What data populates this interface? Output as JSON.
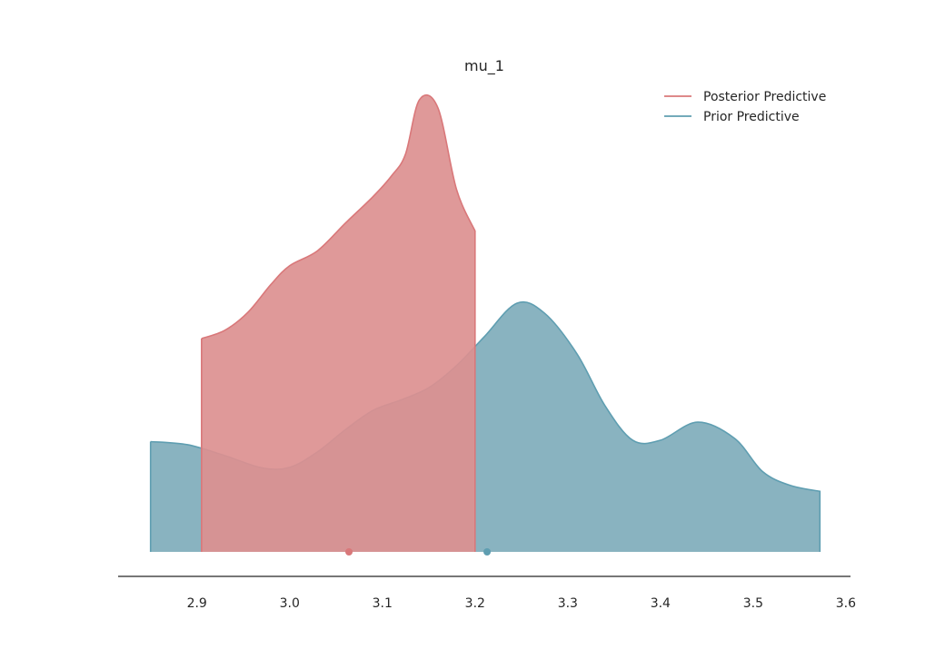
{
  "chart_data": {
    "type": "area",
    "title": "mu_1",
    "xlabel": "",
    "ylabel": "",
    "xlim": [
      2.815,
      3.605
    ],
    "x_ticks": [
      2.9,
      3.0,
      3.1,
      3.2,
      3.3,
      3.4,
      3.5,
      3.6
    ],
    "x_tick_labels": [
      "2.9",
      "3.0",
      "3.1",
      "3.2",
      "3.3",
      "3.4",
      "3.5",
      "3.6"
    ],
    "y_axis_visible": false,
    "grid": false,
    "legend_position": "top-right",
    "series": [
      {
        "name": "Prior Predictive",
        "color": "#5f9eb1",
        "fill_color": "#7fadbb",
        "mean": 3.213,
        "points": [
          [
            2.85,
            0.244
          ],
          [
            2.89,
            0.237
          ],
          [
            2.93,
            0.213
          ],
          [
            2.97,
            0.186
          ],
          [
            3.0,
            0.187
          ],
          [
            3.03,
            0.221
          ],
          [
            3.06,
            0.27
          ],
          [
            3.09,
            0.313
          ],
          [
            3.12,
            0.336
          ],
          [
            3.15,
            0.363
          ],
          [
            3.18,
            0.412
          ],
          [
            3.21,
            0.476
          ],
          [
            3.245,
            0.55
          ],
          [
            3.275,
            0.528
          ],
          [
            3.31,
            0.438
          ],
          [
            3.34,
            0.324
          ],
          [
            3.37,
            0.247
          ],
          [
            3.4,
            0.247
          ],
          [
            3.44,
            0.287
          ],
          [
            3.48,
            0.251
          ],
          [
            3.51,
            0.178
          ],
          [
            3.54,
            0.147
          ],
          [
            3.572,
            0.134
          ]
        ]
      },
      {
        "name": "Posterior Predictive",
        "color": "#d9787a",
        "fill_color": "#dc9090",
        "mean": 3.064,
        "points": [
          [
            2.905,
            0.472
          ],
          [
            2.93,
            0.49
          ],
          [
            2.955,
            0.53
          ],
          [
            2.98,
            0.592
          ],
          [
            3.0,
            0.633
          ],
          [
            3.03,
            0.666
          ],
          [
            3.06,
            0.727
          ],
          [
            3.09,
            0.786
          ],
          [
            3.11,
            0.832
          ],
          [
            3.125,
            0.88
          ],
          [
            3.14,
            1.0
          ],
          [
            3.16,
            0.982
          ],
          [
            3.18,
            0.802
          ],
          [
            3.2,
            0.71
          ]
        ]
      }
    ]
  }
}
